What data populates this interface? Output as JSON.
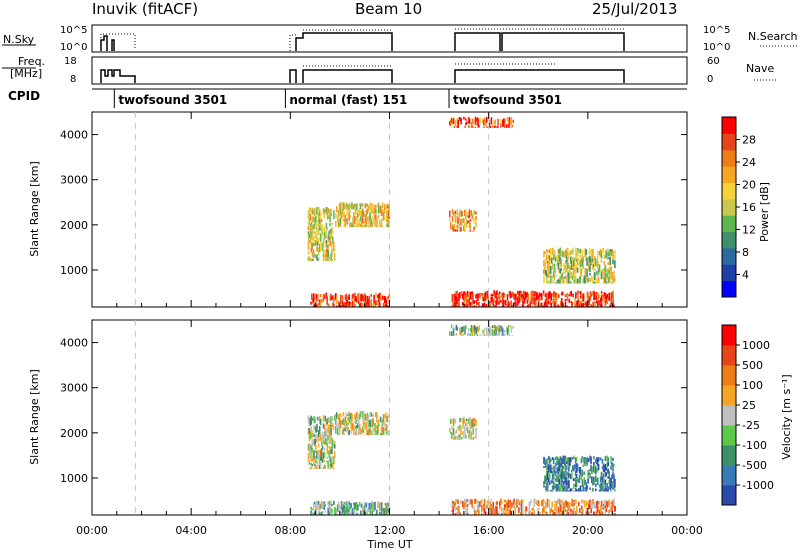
{
  "header": {
    "station": "Inuvik (fitACF)",
    "beam": "Beam 10",
    "date": "25/Jul/2013"
  },
  "nsky_panel": {
    "left_label": "N.Sky",
    "left_ticks": [
      "10^5",
      "10^0"
    ],
    "right_label": "N.Search",
    "right_ticks": [
      "10^5",
      "10^0"
    ]
  },
  "freq_panel": {
    "left_label_1": "Freq.",
    "left_label_2": "[MHz]",
    "left_ticks": [
      "18",
      "8"
    ],
    "right_label": "Nave",
    "right_ticks": [
      "60",
      "0"
    ]
  },
  "cpid": {
    "label": "CPID",
    "modes": [
      {
        "text": "twofsound 3501",
        "start_hour": 0.9
      },
      {
        "text": "normal (fast) 151",
        "start_hour": 7.8
      },
      {
        "text": "twofsound 3501",
        "start_hour": 14.4
      }
    ]
  },
  "chart_data": [
    {
      "type": "heatmap",
      "name": "power",
      "ylabel": "Slant Range [km]",
      "xlabel": "",
      "xlim_hours": [
        0,
        24
      ],
      "ylim": [
        180,
        4500
      ],
      "yticks": [
        "1000",
        "2000",
        "3000",
        "4000"
      ],
      "colorbar": {
        "label": "Power [dB]",
        "ticks": [
          "28",
          "24",
          "20",
          "16",
          "12",
          "8",
          "4"
        ],
        "colors": [
          "#0000ff",
          "#1f3fa8",
          "#2a6aa0",
          "#3f8f6a",
          "#5fb84e",
          "#c8c84a",
          "#f6d23a",
          "#f5a623",
          "#ef7d17",
          "#e8441a",
          "#ff0000"
        ]
      },
      "echo_regions": [
        {
          "t0": 8.7,
          "t1": 9.8,
          "r0": 1200,
          "r1": 2400,
          "level": 0.55
        },
        {
          "t0": 9.8,
          "t1": 12.0,
          "r0": 1950,
          "r1": 2500,
          "level": 0.6
        },
        {
          "t0": 8.8,
          "t1": 12.0,
          "r0": 180,
          "r1": 500,
          "level": 0.9
        },
        {
          "t0": 14.4,
          "t1": 17.0,
          "r0": 4150,
          "r1": 4400,
          "level": 0.85
        },
        {
          "t0": 14.4,
          "t1": 15.5,
          "r0": 1850,
          "r1": 2350,
          "level": 0.7
        },
        {
          "t0": 14.5,
          "t1": 21.1,
          "r0": 180,
          "r1": 550,
          "level": 0.95
        },
        {
          "t0": 18.2,
          "t1": 21.1,
          "r0": 700,
          "r1": 1500,
          "level": 0.5
        }
      ]
    },
    {
      "type": "heatmap",
      "name": "velocity",
      "ylabel": "Slant Range [km]",
      "xlabel": "Time UT",
      "xlim_hours": [
        0,
        24
      ],
      "xticks": [
        "00:00",
        "04:00",
        "08:00",
        "12:00",
        "16:00",
        "20:00",
        "00:00"
      ],
      "ylim": [
        180,
        4500
      ],
      "yticks": [
        "1000",
        "2000",
        "3000",
        "4000"
      ],
      "colorbar": {
        "label": "Velocity [m s⁻¹]",
        "ticks": [
          "1000",
          "500",
          "100",
          "25",
          "-25",
          "-100",
          "-500",
          "-1000"
        ],
        "colors": [
          "#2a4aa8",
          "#3a7ab8",
          "#3f8f6a",
          "#5cc84a",
          "#c0c0c0",
          "#f5a623",
          "#ef7d17",
          "#e8441a",
          "#ff0000"
        ]
      },
      "echo_regions": [
        {
          "t0": 8.7,
          "t1": 9.8,
          "r0": 1200,
          "r1": 2400,
          "level": 0.45
        },
        {
          "t0": 9.8,
          "t1": 12.0,
          "r0": 1950,
          "r1": 2500,
          "level": 0.5
        },
        {
          "t0": 8.8,
          "t1": 12.0,
          "r0": 180,
          "r1": 500,
          "level": 0.35
        },
        {
          "t0": 14.4,
          "t1": 17.0,
          "r0": 4150,
          "r1": 4400,
          "level": 0.4
        },
        {
          "t0": 14.4,
          "t1": 15.5,
          "r0": 1850,
          "r1": 2350,
          "level": 0.5
        },
        {
          "t0": 14.5,
          "t1": 21.1,
          "r0": 180,
          "r1": 550,
          "level": 0.68
        },
        {
          "t0": 18.2,
          "t1": 21.1,
          "r0": 700,
          "r1": 1500,
          "level": 0.2
        }
      ]
    }
  ],
  "colors": {
    "axis": "#000000",
    "dashed_marker": "#c8c8c8"
  }
}
